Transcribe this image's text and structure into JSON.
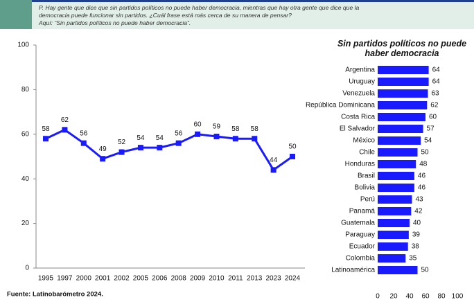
{
  "header": {
    "lines": [
      "P. Hay gente que dice que sin partidos políticos no puede haber democracia, mientras que hay otra gente que dice que la",
      "democracia puede funcionar sin partidos. ¿Cuál frase está más cerca de su manera de pensar?",
      "Aquí: “Sin partidos políticos no puede haber democracia”."
    ]
  },
  "chart_data": [
    {
      "type": "line",
      "categories": [
        "1995",
        "1997",
        "2000",
        "2001",
        "2002",
        "2005",
        "2006",
        "2008",
        "2009",
        "2010",
        "2011",
        "2013",
        "2023",
        "2024"
      ],
      "values": [
        58,
        62,
        56,
        49,
        52,
        54,
        54,
        56,
        60,
        59,
        58,
        58,
        44,
        50
      ],
      "color": "#1a1aff",
      "ylim": [
        0,
        100
      ],
      "yticks": [
        0,
        20,
        40,
        60,
        80,
        100
      ],
      "grid": false
    },
    {
      "type": "hbar",
      "title": "Sin partidos políticos no puede haber democracia",
      "categories": [
        "Argentina",
        "Uruguay",
        "Venezuela",
        "República Dominicana",
        "Costa Rica",
        "El Salvador",
        "México",
        "Chile",
        "Honduras",
        "Brasil",
        "Bolivia",
        "Perú",
        "Panamá",
        "Guatemala",
        "Paraguay",
        "Ecuador",
        "Colombia",
        "Latinoamérica"
      ],
      "values": [
        64,
        64,
        63,
        62,
        60,
        57,
        54,
        50,
        48,
        46,
        46,
        43,
        42,
        40,
        39,
        38,
        35,
        50
      ],
      "color": "#1a1aff",
      "xlim": [
        0,
        100
      ],
      "xticks": [
        0,
        20,
        40,
        60,
        80,
        100
      ],
      "grid": false
    }
  ],
  "source": "Fuente: Latinobarómetro 2024."
}
